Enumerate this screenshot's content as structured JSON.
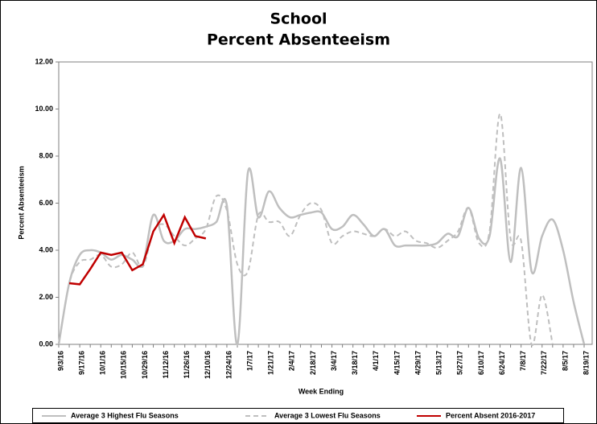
{
  "chart_data": {
    "type": "line",
    "title": "School",
    "subtitle": "Percent Absenteeism",
    "x_label": "Week Ending",
    "y_label": "Percent Absenteeism",
    "categories": [
      "9/3/16",
      null,
      "9/17/16",
      null,
      "10/1/16",
      null,
      "10/15/16",
      null,
      "10/29/16",
      null,
      "11/12/16",
      null,
      "11/26/16",
      null,
      "12/10/16",
      null,
      "12/24/16",
      null,
      "1/7/17",
      null,
      "1/21/17",
      null,
      "2/4/17",
      null,
      "2/18/17",
      null,
      "3/4/17",
      null,
      "3/18/17",
      null,
      "4/1/17",
      null,
      "4/15/17",
      null,
      "4/29/17",
      null,
      "5/13/17",
      null,
      "5/27/17",
      null,
      "6/10/17",
      null,
      "6/24/17",
      null,
      "7/8/17",
      null,
      "7/22/17",
      null,
      "8/5/17",
      null,
      "8/19/17"
    ],
    "series": [
      {
        "name": "Average 3 Highest Flu Seasons",
        "color": "#bfbfbf",
        "style": "solid",
        "smooth": true,
        "values": [
          0,
          2.6,
          3.8,
          4.0,
          3.9,
          3.6,
          3.8,
          3.6,
          3.4,
          5.5,
          4.4,
          4.4,
          4.9,
          4.9,
          5.0,
          5.2,
          5.9,
          0,
          7.3,
          5.4,
          6.5,
          5.8,
          5.4,
          5.5,
          5.6,
          5.6,
          4.9,
          5.0,
          5.5,
          5.1,
          4.6,
          4.9,
          4.2,
          4.2,
          4.2,
          4.2,
          4.3,
          4.7,
          4.6,
          5.8,
          4.5,
          4.6,
          7.9,
          3.5,
          7.5,
          3.1,
          4.6,
          5.3,
          4.0,
          1.8,
          0
        ]
      },
      {
        "name": "Average 3 Lowest Flu Seasons",
        "color": "#bfbfbf",
        "style": "dashed",
        "smooth": true,
        "values": [
          0,
          2.6,
          3.5,
          3.6,
          3.8,
          3.3,
          3.4,
          3.9,
          3.3,
          4.8,
          5.1,
          4.6,
          4.2,
          4.5,
          4.9,
          6.3,
          5.7,
          3.4,
          3.1,
          5.5,
          5.2,
          5.2,
          4.6,
          5.5,
          6.0,
          5.7,
          4.3,
          4.6,
          4.8,
          4.7,
          4.6,
          4.9,
          4.6,
          4.8,
          4.4,
          4.3,
          4.1,
          4.4,
          4.8,
          5.8,
          4.3,
          4.8,
          9.8,
          4.5,
          4.4,
          0,
          2.1,
          0,
          null,
          null,
          null
        ]
      },
      {
        "name": "Percent Absent 2016-2017",
        "color": "#c00000",
        "style": "solid",
        "smooth": false,
        "values": [
          null,
          2.6,
          2.55,
          3.2,
          3.9,
          3.8,
          3.9,
          3.15,
          3.4,
          4.8,
          5.5,
          4.3,
          5.4,
          4.6,
          4.5,
          null,
          null,
          null,
          null,
          null,
          null,
          null,
          null,
          null,
          null,
          null,
          null,
          null,
          null,
          null,
          null,
          null,
          null,
          null,
          null,
          null,
          null,
          null,
          null,
          null,
          null,
          null,
          null,
          null,
          null,
          null,
          null,
          null,
          null,
          null,
          null
        ]
      }
    ],
    "ylim": [
      0,
      12
    ],
    "yticks": [
      {
        "value": 0,
        "label": "0.00"
      },
      {
        "value": 2,
        "label": "2.00"
      },
      {
        "value": 4,
        "label": "4.00"
      },
      {
        "value": 6,
        "label": "6.00"
      },
      {
        "value": 8,
        "label": "8.00"
      },
      {
        "value": 10,
        "label": "10.00"
      },
      {
        "value": 12,
        "label": "12.00"
      }
    ],
    "grid": false,
    "legend": "bottom"
  }
}
